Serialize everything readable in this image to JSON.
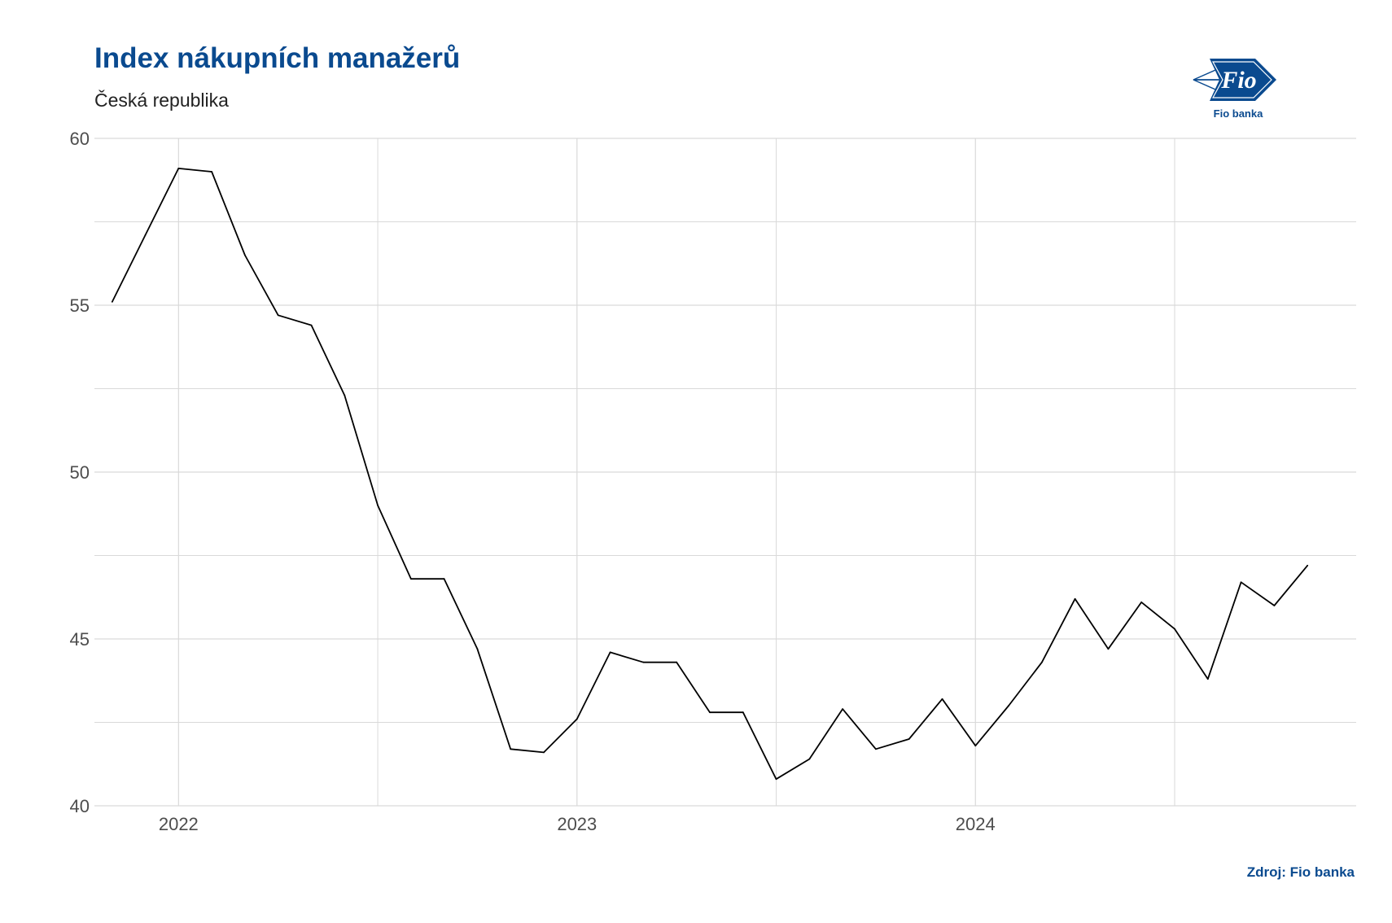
{
  "header": {
    "title": "Index nákupních manažerů",
    "subtitle": "Česká republika"
  },
  "logo": {
    "label": "Fio",
    "name": "Fio banka"
  },
  "footer": {
    "source": "Zdroj: Fio banka"
  },
  "colors": {
    "title": "#0a4a8f",
    "line": "#000000",
    "grid": "#d9d9d9"
  },
  "chart_data": {
    "type": "line",
    "title": "Index nákupních manažerů",
    "subtitle": "Česká republika",
    "xlabel": "",
    "ylabel": "",
    "x_ticks": [
      {
        "label": "2022",
        "date": "2022-01"
      },
      {
        "label": "2023",
        "date": "2023-01"
      },
      {
        "label": "2024",
        "date": "2024-01"
      }
    ],
    "y_ticks": [
      40,
      45,
      50,
      55,
      60
    ],
    "ylim": [
      40,
      60
    ],
    "xlim": [
      "2021-10-15",
      "2024-12-15"
    ],
    "grid": true,
    "legend": "none",
    "series": [
      {
        "x": [
          "2021-11",
          "2021-12",
          "2022-01",
          "2022-02",
          "2022-03",
          "2022-04",
          "2022-05",
          "2022-06",
          "2022-07",
          "2022-08",
          "2022-09",
          "2022-10",
          "2022-11",
          "2022-12",
          "2023-01",
          "2023-02",
          "2023-03",
          "2023-04",
          "2023-05",
          "2023-06",
          "2023-07",
          "2023-08",
          "2023-09",
          "2023-10",
          "2023-11",
          "2023-12",
          "2024-01",
          "2024-02",
          "2024-03",
          "2024-04",
          "2024-05",
          "2024-06",
          "2024-07",
          "2024-08",
          "2024-09",
          "2024-10",
          "2024-11"
        ],
        "values": [
          55.1,
          57.1,
          59.1,
          59.0,
          56.5,
          54.7,
          54.4,
          52.3,
          49.0,
          46.8,
          46.8,
          44.7,
          41.7,
          41.6,
          42.6,
          44.6,
          44.3,
          44.3,
          42.8,
          42.8,
          40.8,
          41.4,
          42.9,
          41.7,
          42.0,
          43.2,
          41.8,
          43.0,
          44.3,
          46.2,
          44.7,
          46.1,
          45.3,
          43.8,
          46.7,
          46.0,
          47.2
        ]
      }
    ]
  }
}
